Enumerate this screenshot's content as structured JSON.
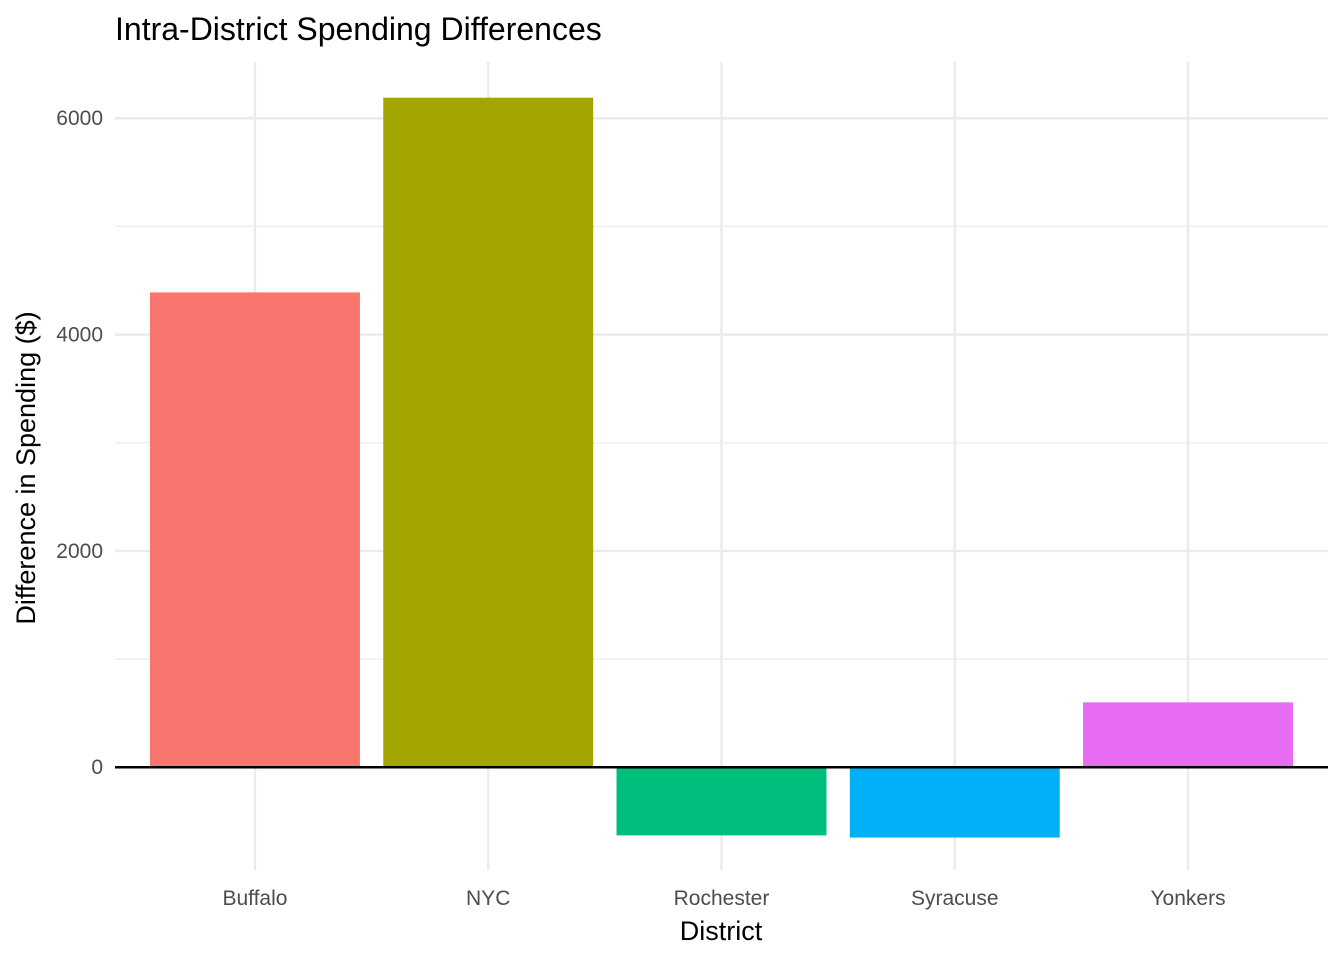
{
  "chart_data": {
    "type": "bar",
    "title": "Intra-District Spending Differences",
    "xlabel": "District",
    "ylabel": "Difference in Spending ($)",
    "categories": [
      "Buffalo",
      "NYC",
      "Rochester",
      "Syracuse",
      "Yonkers"
    ],
    "values": [
      4390,
      6190,
      -630,
      -650,
      600
    ],
    "colors": [
      "#F8766D",
      "#A3A500",
      "#00BF7D",
      "#00B0F6",
      "#E76BF3"
    ],
    "ylim": [
      -950,
      6520
    ],
    "yticks": [
      0,
      2000,
      4000,
      6000
    ],
    "ytick_labels": [
      "0",
      "2000",
      "4000",
      "6000"
    ],
    "y_minor_ticks": [
      1000,
      3000,
      5000
    ],
    "grid": true,
    "legend": "none",
    "zero_line": true
  }
}
